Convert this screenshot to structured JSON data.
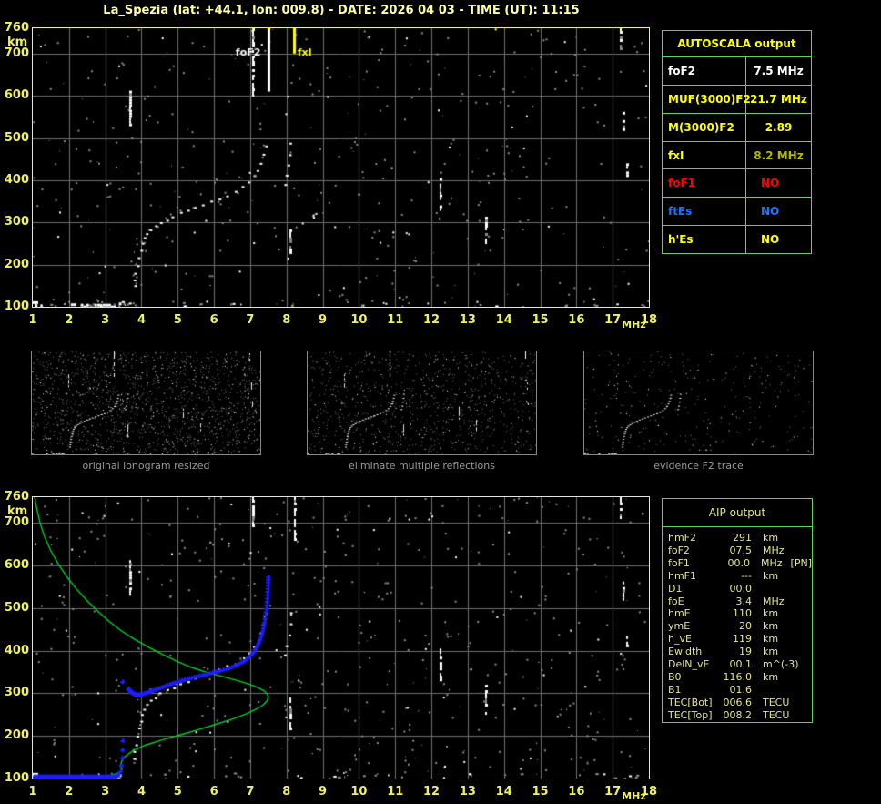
{
  "title": "La_Spezia (lat: +44.1, lon: 009.8) - DATE: 2026 04 03 - TIME (UT): 11:15",
  "colors": {
    "background": "#000000",
    "plot_border": "#ffff00",
    "tick_text": "#f0f060",
    "title_text": "#ffffa8",
    "grid": "#6f6f6f",
    "noise_gray": "#8c8c8c",
    "noise_white": "#ffffff",
    "table_border": "#5fd35f",
    "yellow": "#ffff00",
    "white": "#ffffff",
    "olive_value": "#b8b800",
    "red": "#ff0000",
    "blue_label": "#1a75ff",
    "aip_text": "#e3e38f",
    "caption_gray": "#9a9a9a",
    "trace_green": "#00d42a",
    "trace_blue": "#1e1eff"
  },
  "axes": {
    "freq_label": "MHz",
    "height_label": "km",
    "freq_ticks": [
      1,
      2,
      3,
      4,
      5,
      6,
      7,
      8,
      9,
      10,
      11,
      12,
      13,
      14,
      15,
      16,
      17,
      18
    ],
    "height_ticks": [
      760,
      700,
      600,
      500,
      400,
      300,
      200,
      100
    ],
    "freq_range": [
      1,
      18
    ],
    "height_range": [
      100,
      760
    ]
  },
  "autoscala_table": {
    "title": "AUTOSCALA output",
    "rows": [
      {
        "label": "foF2",
        "value": "7.5 MHz",
        "label_color": "#ffffff",
        "value_color": "#ffffff",
        "align": "center"
      },
      {
        "label": "MUF(3000)F2",
        "value": "21.7 MHz",
        "label_color": "#ffff00",
        "value_color": "#ffff00",
        "align": "center"
      },
      {
        "label": "M(3000)F2",
        "value": "2.89",
        "label_color": "#ffff00",
        "value_color": "#ffff00",
        "align": "center"
      },
      {
        "label": "fxI",
        "value": "8.2 MHz",
        "label_color": "#ffff00",
        "value_color": "#b8b800",
        "align": "center"
      },
      {
        "label": "foF1",
        "value": "NO",
        "label_color": "#ff0000",
        "value_color": "#ff0000",
        "align": "left"
      },
      {
        "label": "ftEs",
        "value": "NO",
        "label_color": "#1a75ff",
        "value_color": "#1a75ff",
        "align": "left"
      },
      {
        "label": "h'Es",
        "value": "NO",
        "label_color": "#ffff00",
        "value_color": "#ffff00",
        "align": "left"
      }
    ]
  },
  "aip_table": {
    "title": "AIP output",
    "rows": [
      {
        "name": "hmF2",
        "value": "291",
        "unit": "km",
        "extra": ""
      },
      {
        "name": "foF2",
        "value": "07.5",
        "unit": "MHz",
        "extra": ""
      },
      {
        "name": "foF1",
        "value": "00.0",
        "unit": "MHz",
        "extra": "[PN]"
      },
      {
        "name": "hmF1",
        "value": "---",
        "unit": "km",
        "extra": ""
      },
      {
        "name": "D1",
        "value": "00.0",
        "unit": "",
        "extra": ""
      },
      {
        "name": "foE",
        "value": "3.4",
        "unit": "MHz",
        "extra": ""
      },
      {
        "name": "hmE",
        "value": "110",
        "unit": "km",
        "extra": ""
      },
      {
        "name": "ymE",
        "value": "20",
        "unit": "km",
        "extra": ""
      },
      {
        "name": "h_vE",
        "value": "119",
        "unit": "km",
        "extra": ""
      },
      {
        "name": "Ewidth",
        "value": "19",
        "unit": "km",
        "extra": ""
      },
      {
        "name": "DelN_vE",
        "value": "00.1",
        "unit": "m^(-3)",
        "extra": ""
      },
      {
        "name": "B0",
        "value": "116.0",
        "unit": "km",
        "extra": ""
      },
      {
        "name": "B1",
        "value": "01.6",
        "unit": "",
        "extra": ""
      },
      {
        "name": "TEC[Bot]",
        "value": "006.6",
        "unit": "TECU",
        "extra": ""
      },
      {
        "name": "TEC[Top]",
        "value": "008.2",
        "unit": "TECU",
        "extra": ""
      }
    ]
  },
  "thumbnails": [
    {
      "caption": "original ionogram resized",
      "seed": 3,
      "noise": 1500,
      "streaks": true
    },
    {
      "caption": "eliminate multiple reflections",
      "seed": 5,
      "noise": 900,
      "streaks": true
    },
    {
      "caption": "evidence F2 trace",
      "seed": 9,
      "noise": 300,
      "streaks": false
    }
  ],
  "chart_data": {
    "type": "ionogram",
    "x_axis": {
      "label": "MHz",
      "range": [
        1,
        18
      ]
    },
    "y_axis": {
      "label": "km",
      "range": [
        100,
        760
      ]
    },
    "markers_top": [
      {
        "name": "foF2",
        "f": 7.5,
        "h_to": 610,
        "color": "#ffffff",
        "label": "foF2",
        "label_color": "#ffffff",
        "label_dx": -36
      },
      {
        "name": "fxI",
        "f": 8.2,
        "h_to": 700,
        "color": "#ffff00",
        "label": "fxI",
        "label_color": "#ffff00",
        "label_dx": 4
      }
    ],
    "shared": {
      "f_trace": [
        [
          3.78,
          150
        ],
        [
          3.8,
          165
        ],
        [
          3.82,
          182
        ],
        [
          3.86,
          200
        ],
        [
          3.9,
          218
        ],
        [
          3.95,
          235
        ],
        [
          4.0,
          250
        ],
        [
          4.05,
          263
        ],
        [
          4.12,
          274
        ],
        [
          4.22,
          284
        ],
        [
          4.35,
          292
        ],
        [
          4.5,
          300
        ],
        [
          4.68,
          308
        ],
        [
          4.85,
          315
        ],
        [
          5.05,
          323
        ],
        [
          5.25,
          330
        ],
        [
          5.45,
          336
        ],
        [
          5.68,
          343
        ],
        [
          5.9,
          350
        ],
        [
          6.12,
          357
        ],
        [
          6.35,
          364
        ],
        [
          6.58,
          373
        ],
        [
          6.78,
          384
        ],
        [
          6.95,
          396
        ],
        [
          7.1,
          410
        ],
        [
          7.2,
          426
        ],
        [
          7.28,
          443
        ],
        [
          7.34,
          462
        ],
        [
          7.39,
          482
        ]
      ],
      "x_trace": [
        [
          7.92,
          390
        ],
        [
          7.98,
          412
        ],
        [
          8.03,
          437
        ],
        [
          8.07,
          462
        ],
        [
          8.1,
          488
        ]
      ],
      "e_blobs": [
        [
          0.98,
          1.28,
          104
        ],
        [
          1.0,
          1.1,
          111
        ],
        [
          2.05,
          2.2,
          106
        ],
        [
          2.32,
          2.72,
          105
        ],
        [
          2.78,
          3.28,
          105
        ],
        [
          3.3,
          3.45,
          108
        ]
      ],
      "streaks": [
        {
          "f": 3.69,
          "h1": 612,
          "h2": 534
        },
        {
          "f": 8.1,
          "h1": 290,
          "h2": 215
        },
        {
          "f": 12.25,
          "h1": 405,
          "h2": 330
        },
        {
          "f": 13.5,
          "h1": 320,
          "h2": 253
        },
        {
          "f": 17.4,
          "h1": 440,
          "h2": 408
        },
        {
          "f": 17.3,
          "h1": 562,
          "h2": 520
        }
      ]
    },
    "panels": {
      "top": {
        "noise_seed": 7,
        "noise_count": 430,
        "bottom_noise": 45,
        "streaks_extra": [
          {
            "f": 7.08,
            "h1": 760,
            "h2": 600
          },
          {
            "f": 17.22,
            "h1": 760,
            "h2": 702
          }
        ]
      },
      "bottom": {
        "noise_seed": 13,
        "noise_count": 520,
        "bottom_noise": 35,
        "streaks_extra": [
          {
            "f": 7.08,
            "h1": 760,
            "h2": 690
          },
          {
            "f": 8.22,
            "h1": 760,
            "h2": 658
          },
          {
            "f": 17.22,
            "h1": 760,
            "h2": 712
          }
        ]
      }
    },
    "profile_green": [
      [
        1.05,
        760
      ],
      [
        1.1,
        738
      ],
      [
        1.2,
        700
      ],
      [
        1.32,
        668
      ],
      [
        1.5,
        634
      ],
      [
        1.7,
        604
      ],
      [
        1.95,
        572
      ],
      [
        2.2,
        545
      ],
      [
        2.5,
        517
      ],
      [
        2.8,
        492
      ],
      [
        3.1,
        469
      ],
      [
        3.45,
        446
      ],
      [
        3.8,
        427
      ],
      [
        4.2,
        408
      ],
      [
        4.6,
        390
      ],
      [
        5.0,
        374
      ],
      [
        5.4,
        360
      ],
      [
        5.8,
        349
      ],
      [
        6.2,
        340
      ],
      [
        6.6,
        331
      ],
      [
        6.95,
        322
      ],
      [
        7.2,
        314
      ],
      [
        7.38,
        306
      ],
      [
        7.47,
        298
      ],
      [
        7.5,
        291
      ],
      [
        7.47,
        283
      ],
      [
        7.38,
        274
      ],
      [
        7.2,
        264
      ],
      [
        6.9,
        252
      ],
      [
        6.5,
        239
      ],
      [
        6.05,
        227
      ],
      [
        5.55,
        214
      ],
      [
        5.05,
        202
      ],
      [
        4.55,
        190
      ],
      [
        4.1,
        178
      ],
      [
        3.78,
        166
      ],
      [
        3.55,
        152
      ],
      [
        3.45,
        140
      ],
      [
        3.42,
        130
      ],
      [
        3.46,
        122
      ],
      [
        3.42,
        115
      ],
      [
        3.3,
        111
      ],
      [
        3.15,
        108
      ],
      [
        3.0,
        104
      ],
      [
        2.94,
        100
      ]
    ],
    "trace_blue_E": {
      "f1": 1.02,
      "f2": 3.28,
      "h": 105,
      "step": 0.045
    },
    "trace_blue_F": [
      [
        3.62,
        312
      ],
      [
        3.7,
        304
      ],
      [
        3.78,
        299
      ],
      [
        3.88,
        297
      ],
      [
        4.0,
        299
      ],
      [
        4.15,
        303
      ],
      [
        4.3,
        308
      ],
      [
        4.5,
        314
      ],
      [
        4.7,
        320
      ],
      [
        4.9,
        326
      ],
      [
        5.1,
        331
      ],
      [
        5.3,
        336
      ],
      [
        5.5,
        340
      ],
      [
        5.7,
        344
      ],
      [
        5.95,
        350
      ],
      [
        6.15,
        354
      ],
      [
        6.4,
        360
      ],
      [
        6.6,
        367
      ],
      [
        6.8,
        376
      ],
      [
        6.95,
        386
      ],
      [
        7.08,
        398
      ],
      [
        7.18,
        412
      ],
      [
        7.26,
        428
      ],
      [
        7.33,
        447
      ],
      [
        7.38,
        468
      ],
      [
        7.42,
        492
      ],
      [
        7.45,
        516
      ],
      [
        7.47,
        540
      ],
      [
        7.48,
        562
      ],
      [
        7.49,
        580
      ]
    ],
    "blue_extra": [
      [
        3.3,
        107
      ],
      [
        3.35,
        110
      ],
      [
        3.4,
        118
      ],
      [
        3.43,
        132
      ],
      [
        3.45,
        150
      ],
      [
        3.46,
        168
      ],
      [
        3.47,
        190
      ],
      [
        3.46,
        328
      ]
    ]
  }
}
